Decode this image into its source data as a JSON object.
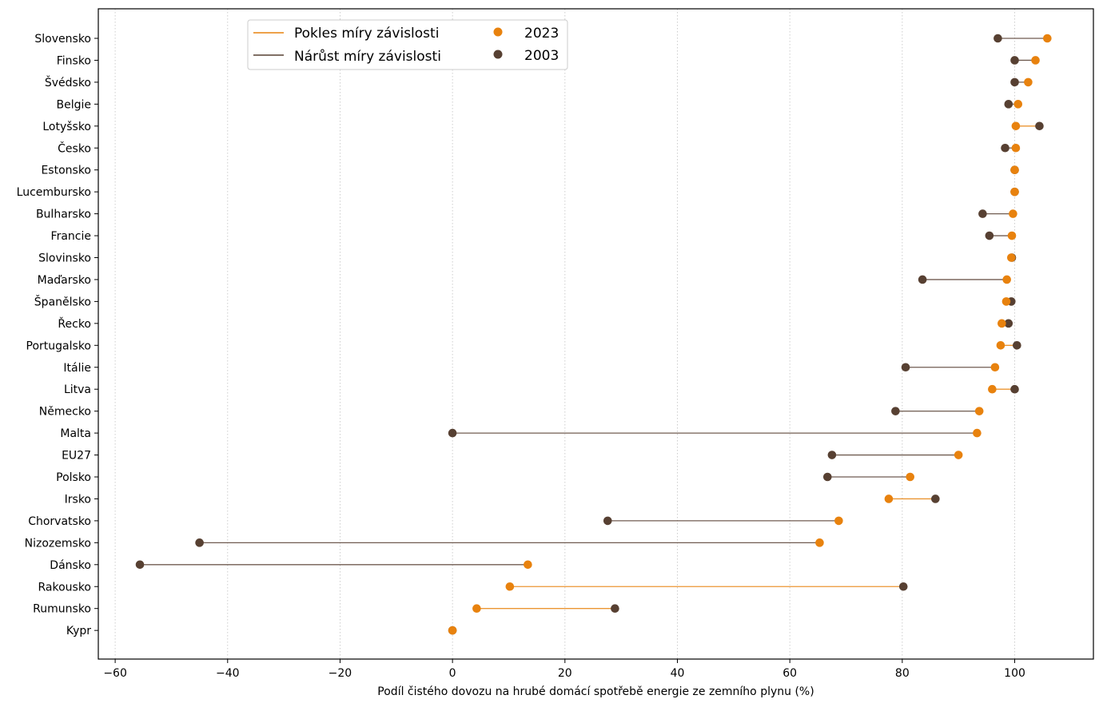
{
  "chart_data": {
    "type": "dumbbell",
    "xlabel": "Podíl čistého dovozu na hrubé domácí spotřebě energie ze zemního plynu (%)",
    "ylabel": "",
    "xlim": [
      -63,
      114
    ],
    "xticks": [
      -60,
      -40,
      -20,
      0,
      20,
      40,
      60,
      80,
      100
    ],
    "grid": "vertical dotted",
    "legend_position": "top-left",
    "legend": {
      "line_decrease": "Pokles míry závislosti",
      "line_increase": "Nárůst míry závislosti",
      "marker_2023": "2023",
      "marker_2003": "2003"
    },
    "categories": [
      "Slovensko",
      "Finsko",
      "Švédsko",
      "Belgie",
      "Lotyšsko",
      "Česko",
      "Estonsko",
      "Lucembursko",
      "Bulharsko",
      "Francie",
      "Slovinsko",
      "Maďarsko",
      "Španělsko",
      "Řecko",
      "Portugalsko",
      "Itálie",
      "Litva",
      "Německo",
      "Malta",
      "EU27",
      "Polsko",
      "Irsko",
      "Chorvatsko",
      "Nizozemsko",
      "Dánsko",
      "Rakousko",
      "Rumunsko",
      "Kypr"
    ],
    "series": [
      {
        "name": "2003",
        "values": [
          97.0,
          100.0,
          100.0,
          98.9,
          104.4,
          98.3,
          100.0,
          100.0,
          94.3,
          95.5,
          99.5,
          83.6,
          99.4,
          98.9,
          100.4,
          80.6,
          100.0,
          78.8,
          0.0,
          67.5,
          66.7,
          85.9,
          27.6,
          -45.0,
          -55.6,
          80.2,
          28.9,
          0.0
        ]
      },
      {
        "name": "2023",
        "values": [
          105.8,
          103.7,
          102.4,
          100.6,
          100.2,
          100.2,
          100.0,
          100.0,
          99.7,
          99.5,
          99.4,
          98.6,
          98.5,
          97.7,
          97.5,
          96.5,
          96.0,
          93.7,
          93.3,
          90.0,
          81.4,
          77.6,
          68.7,
          65.3,
          13.4,
          10.2,
          4.3,
          0.0
        ]
      }
    ],
    "colors": {
      "c2023": "#e8820e",
      "c2003": "#574032",
      "decrease_line": "#e8820e",
      "increase_line": "#574032",
      "grid": "#c8c8c8",
      "axis": "#000000"
    }
  }
}
